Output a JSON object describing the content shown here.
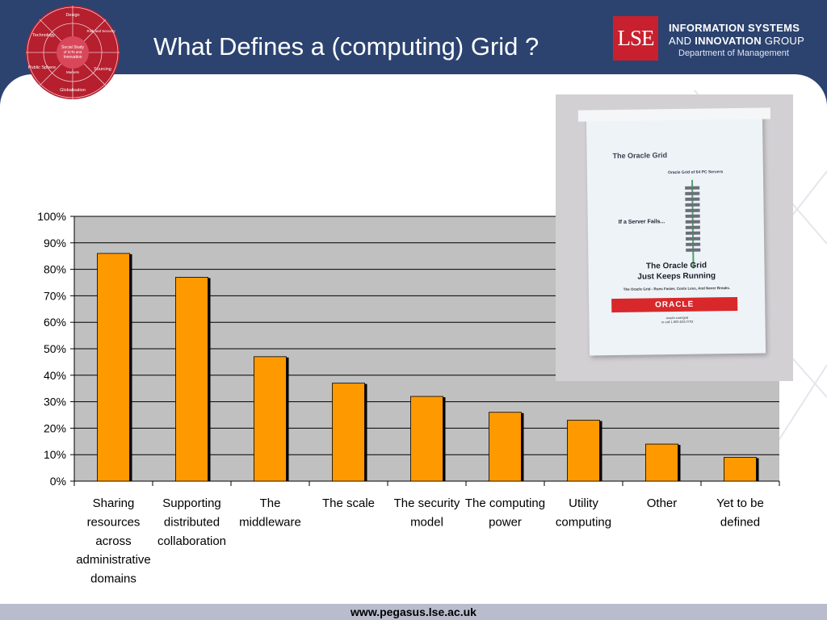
{
  "slide": {
    "title": "What Defines a (computing) Grid ?",
    "footer_url": "www.pegasus.lse.ac.uk"
  },
  "logo": {
    "segments": [
      "Design",
      "Risk and Security",
      "Sourcing",
      "Globalisation",
      "Public Sphere",
      "Technology"
    ],
    "center": [
      "Social Study",
      "of ICTs and",
      "Innovation"
    ],
    "inner_bottom": "Markets"
  },
  "brand": {
    "lse": "LSE",
    "line1": "INFORMATION SYSTEMS",
    "line2_prefix": "AND ",
    "line2_bold": "INNOVATION",
    "line2_suffix": " GROUP",
    "line3": "Department of Management",
    "red": "#c8202e",
    "navy": "#2c4370"
  },
  "photo": {
    "title": "The Oracle Grid",
    "subtitle": "Oracle Grid of 64 PC Servers",
    "fail_text": "If a Server Fails...",
    "headline_1": "The Oracle Grid",
    "headline_2": "Just Keeps Running",
    "tagline": "The Oracle Grid - Runs Faster, Costs Less, And Never Breaks.",
    "brand": "ORACLE",
    "contact_1": "oracle.com/grid",
    "contact_2": "or call 1.800.633.0703"
  },
  "chart_data": {
    "type": "bar",
    "categories": [
      [
        "Sharing",
        "resources",
        "across",
        "administrative",
        "domains"
      ],
      [
        "Supporting",
        "distributed",
        "collaboration"
      ],
      [
        "The",
        "middleware"
      ],
      [
        "The scale"
      ],
      [
        "The security",
        "model"
      ],
      [
        "The computing",
        "power"
      ],
      [
        "Utility",
        "computing"
      ],
      [
        "Other"
      ],
      [
        "Yet to be",
        "defined"
      ]
    ],
    "values": [
      86,
      77,
      47,
      37,
      32,
      26,
      23,
      14,
      9
    ],
    "ylim": [
      0,
      100
    ],
    "yticks": [
      "0%",
      "10%",
      "20%",
      "30%",
      "40%",
      "50%",
      "60%",
      "70%",
      "80%",
      "90%",
      "100%"
    ],
    "grid": true,
    "legend": "none",
    "bar_color": "#ff9900",
    "plot_bg": "#c0c0c0"
  }
}
